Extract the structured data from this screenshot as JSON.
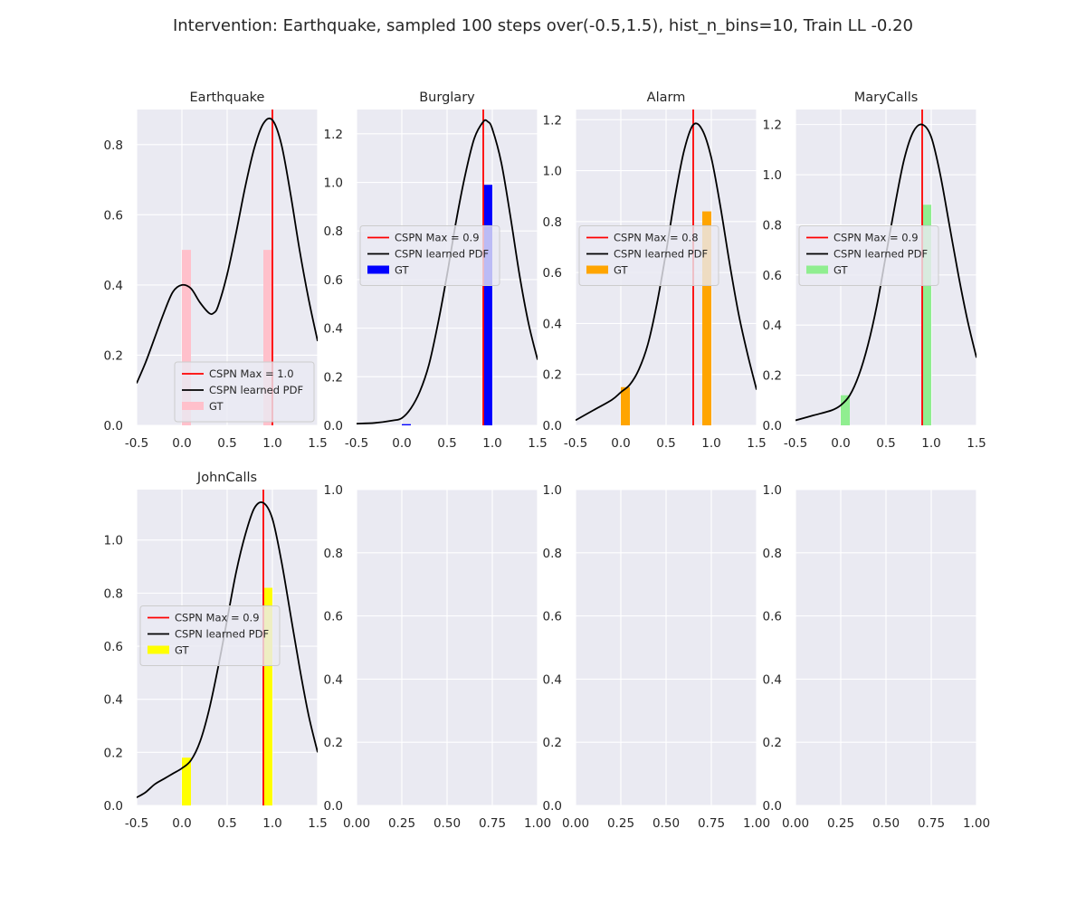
{
  "figure": {
    "suptitle": "Intervention: Earthquake, sampled 100 steps over(-0.5,1.5), hist_n_bins=10, Train LL -0.20",
    "background": "#ffffff",
    "axes_face": "#eaeaf2",
    "grid_color": "#ffffff"
  },
  "chart_data": [
    {
      "type": "line+hist",
      "title": "Earthquake",
      "xlim": [
        -0.5,
        1.5
      ],
      "ylim": [
        0,
        0.9
      ],
      "xticks": [
        "-0.5",
        "0.0",
        "0.5",
        "1.0",
        "1.5"
      ],
      "yticks": [
        "0.0",
        "0.2",
        "0.4",
        "0.6",
        "0.8"
      ],
      "xtick_values": [
        -0.5,
        0.0,
        0.5,
        1.0,
        1.5
      ],
      "ytick_values": [
        0.0,
        0.2,
        0.4,
        0.6,
        0.8
      ],
      "max_line": {
        "x": 1.0,
        "label": "CSPN Max = 1.0",
        "color": "#ff0000"
      },
      "pdf": {
        "label": "CSPN learned PDF",
        "color": "#000000",
        "x": [
          -0.5,
          -0.4,
          -0.3,
          -0.2,
          -0.1,
          0.0,
          0.1,
          0.2,
          0.3,
          0.35,
          0.4,
          0.5,
          0.6,
          0.7,
          0.8,
          0.9,
          1.0,
          1.1,
          1.2,
          1.3,
          1.4,
          1.5
        ],
        "y": [
          0.12,
          0.18,
          0.25,
          0.32,
          0.38,
          0.4,
          0.39,
          0.35,
          0.32,
          0.32,
          0.34,
          0.43,
          0.55,
          0.68,
          0.79,
          0.86,
          0.87,
          0.8,
          0.66,
          0.5,
          0.36,
          0.24
        ]
      },
      "hist": {
        "label": "GT",
        "color": "#ffc0cb",
        "bins": [
          {
            "x0": 0.0,
            "x1": 0.1,
            "y": 0.5
          },
          {
            "x0": 0.9,
            "x1": 1.0,
            "y": 0.5
          }
        ]
      },
      "legend": "lower-right"
    },
    {
      "type": "line+hist",
      "title": "Burglary",
      "xlim": [
        -0.5,
        1.5
      ],
      "ylim": [
        0,
        1.3
      ],
      "xticks": [
        "-0.5",
        "0.0",
        "0.5",
        "1.0",
        "1.5"
      ],
      "yticks": [
        "0.0",
        "0.2",
        "0.4",
        "0.6",
        "0.8",
        "1.0",
        "1.2"
      ],
      "xtick_values": [
        -0.5,
        0.0,
        0.5,
        1.0,
        1.5
      ],
      "ytick_values": [
        0.0,
        0.2,
        0.4,
        0.6,
        0.8,
        1.0,
        1.2
      ],
      "max_line": {
        "x": 0.9,
        "label": "CSPN Max = 0.9",
        "color": "#ff0000"
      },
      "pdf": {
        "label": "CSPN learned PDF",
        "color": "#000000",
        "x": [
          -0.5,
          -0.3,
          -0.1,
          0.0,
          0.1,
          0.2,
          0.3,
          0.4,
          0.5,
          0.6,
          0.7,
          0.8,
          0.9,
          0.95,
          1.0,
          1.1,
          1.2,
          1.3,
          1.4,
          1.5
        ],
        "y": [
          0.007,
          0.01,
          0.02,
          0.03,
          0.07,
          0.14,
          0.25,
          0.42,
          0.62,
          0.84,
          1.03,
          1.18,
          1.25,
          1.25,
          1.22,
          1.08,
          0.86,
          0.62,
          0.42,
          0.27
        ]
      },
      "hist": {
        "label": "GT",
        "color": "#0000ff",
        "bins": [
          {
            "x0": 0.0,
            "x1": 0.1,
            "y": 0.005
          },
          {
            "x0": 0.9,
            "x1": 1.0,
            "y": 0.99
          }
        ]
      },
      "legend": "center-left"
    },
    {
      "type": "line+hist",
      "title": "Alarm",
      "xlim": [
        -0.5,
        1.5
      ],
      "ylim": [
        0,
        1.24
      ],
      "xticks": [
        "-0.5",
        "0.0",
        "0.5",
        "1.0",
        "1.5"
      ],
      "yticks": [
        "0.0",
        "0.2",
        "0.4",
        "0.6",
        "0.8",
        "1.0",
        "1.2"
      ],
      "xtick_values": [
        -0.5,
        0.0,
        0.5,
        1.0,
        1.5
      ],
      "ytick_values": [
        0.0,
        0.2,
        0.4,
        0.6,
        0.8,
        1.0,
        1.2
      ],
      "max_line": {
        "x": 0.8,
        "label": "CSPN Max = 0.8",
        "color": "#ff0000"
      },
      "pdf": {
        "label": "CSPN learned PDF",
        "color": "#000000",
        "x": [
          -0.5,
          -0.3,
          -0.1,
          0.0,
          0.1,
          0.2,
          0.3,
          0.4,
          0.5,
          0.6,
          0.7,
          0.8,
          0.9,
          1.0,
          1.1,
          1.2,
          1.3,
          1.4,
          1.5
        ],
        "y": [
          0.02,
          0.06,
          0.1,
          0.13,
          0.16,
          0.22,
          0.32,
          0.48,
          0.68,
          0.9,
          1.08,
          1.18,
          1.16,
          1.05,
          0.86,
          0.64,
          0.44,
          0.28,
          0.14
        ]
      },
      "hist": {
        "label": "GT",
        "color": "#ffa500",
        "bins": [
          {
            "x0": 0.0,
            "x1": 0.1,
            "y": 0.15
          },
          {
            "x0": 0.9,
            "x1": 1.0,
            "y": 0.84
          }
        ]
      },
      "legend": "center-left"
    },
    {
      "type": "line+hist",
      "title": "MaryCalls",
      "xlim": [
        -0.5,
        1.5
      ],
      "ylim": [
        0,
        1.26
      ],
      "xticks": [
        "-0.5",
        "0.0",
        "0.5",
        "1.0",
        "1.5"
      ],
      "yticks": [
        "0.0",
        "0.2",
        "0.4",
        "0.6",
        "0.8",
        "1.0",
        "1.2"
      ],
      "xtick_values": [
        -0.5,
        0.0,
        0.5,
        1.0,
        1.5
      ],
      "ytick_values": [
        0.0,
        0.2,
        0.4,
        0.6,
        0.8,
        1.0,
        1.2
      ],
      "max_line": {
        "x": 0.9,
        "label": "CSPN Max = 0.9",
        "color": "#ff0000"
      },
      "pdf": {
        "label": "CSPN learned PDF",
        "color": "#000000",
        "x": [
          -0.5,
          -0.3,
          -0.1,
          0.0,
          0.1,
          0.2,
          0.3,
          0.4,
          0.5,
          0.6,
          0.7,
          0.8,
          0.9,
          1.0,
          1.1,
          1.2,
          1.3,
          1.4,
          1.5
        ],
        "y": [
          0.02,
          0.04,
          0.06,
          0.08,
          0.12,
          0.2,
          0.32,
          0.48,
          0.68,
          0.88,
          1.06,
          1.17,
          1.2,
          1.15,
          1.0,
          0.8,
          0.6,
          0.42,
          0.27
        ]
      },
      "hist": {
        "label": "GT",
        "color": "#90ee90",
        "bins": [
          {
            "x0": 0.0,
            "x1": 0.1,
            "y": 0.12
          },
          {
            "x0": 0.9,
            "x1": 1.0,
            "y": 0.88
          }
        ]
      },
      "legend": "center-right"
    },
    {
      "type": "line+hist",
      "title": "JohnCalls",
      "xlim": [
        -0.5,
        1.5
      ],
      "ylim": [
        0,
        1.19
      ],
      "xticks": [
        "-0.5",
        "0.0",
        "0.5",
        "1.0",
        "1.5"
      ],
      "yticks": [
        "0.0",
        "0.2",
        "0.4",
        "0.6",
        "0.8",
        "1.0"
      ],
      "xtick_values": [
        -0.5,
        0.0,
        0.5,
        1.0,
        1.5
      ],
      "ytick_values": [
        0.0,
        0.2,
        0.4,
        0.6,
        0.8,
        1.0
      ],
      "max_line": {
        "x": 0.9,
        "label": "CSPN Max = 0.9",
        "color": "#ff0000"
      },
      "pdf": {
        "label": "CSPN learned PDF",
        "color": "#000000",
        "x": [
          -0.5,
          -0.4,
          -0.3,
          -0.2,
          -0.1,
          0.0,
          0.1,
          0.2,
          0.3,
          0.4,
          0.5,
          0.6,
          0.7,
          0.8,
          0.9,
          1.0,
          1.1,
          1.2,
          1.3,
          1.4,
          1.5
        ],
        "y": [
          0.03,
          0.05,
          0.08,
          0.1,
          0.12,
          0.14,
          0.17,
          0.24,
          0.36,
          0.52,
          0.7,
          0.88,
          1.02,
          1.12,
          1.14,
          1.08,
          0.92,
          0.72,
          0.52,
          0.34,
          0.2
        ]
      },
      "hist": {
        "label": "GT",
        "color": "#ffff00",
        "bins": [
          {
            "x0": 0.0,
            "x1": 0.1,
            "y": 0.18
          },
          {
            "x0": 0.9,
            "x1": 1.0,
            "y": 0.82
          }
        ]
      },
      "legend": "center-left"
    },
    {
      "type": "empty",
      "title": "",
      "xlim": [
        0,
        1
      ],
      "ylim": [
        0,
        1
      ],
      "xticks": [
        "0.00",
        "0.25",
        "0.50",
        "0.75",
        "1.00"
      ],
      "yticks": [
        "0.0",
        "0.2",
        "0.4",
        "0.6",
        "0.8",
        "1.0"
      ],
      "xtick_values": [
        0,
        0.25,
        0.5,
        0.75,
        1.0
      ],
      "ytick_values": [
        0,
        0.2,
        0.4,
        0.6,
        0.8,
        1.0
      ]
    },
    {
      "type": "empty",
      "title": "",
      "xlim": [
        0,
        1
      ],
      "ylim": [
        0,
        1
      ],
      "xticks": [
        "0.00",
        "0.25",
        "0.50",
        "0.75",
        "1.00"
      ],
      "yticks": [
        "0.0",
        "0.2",
        "0.4",
        "0.6",
        "0.8",
        "1.0"
      ],
      "xtick_values": [
        0,
        0.25,
        0.5,
        0.75,
        1.0
      ],
      "ytick_values": [
        0,
        0.2,
        0.4,
        0.6,
        0.8,
        1.0
      ]
    },
    {
      "type": "empty",
      "title": "",
      "xlim": [
        0,
        1
      ],
      "ylim": [
        0,
        1
      ],
      "xticks": [
        "0.00",
        "0.25",
        "0.50",
        "0.75",
        "1.00"
      ],
      "yticks": [
        "0.0",
        "0.2",
        "0.4",
        "0.6",
        "0.8",
        "1.0"
      ],
      "xtick_values": [
        0,
        0.25,
        0.5,
        0.75,
        1.0
      ],
      "ytick_values": [
        0,
        0.2,
        0.4,
        0.6,
        0.8,
        1.0
      ]
    }
  ]
}
